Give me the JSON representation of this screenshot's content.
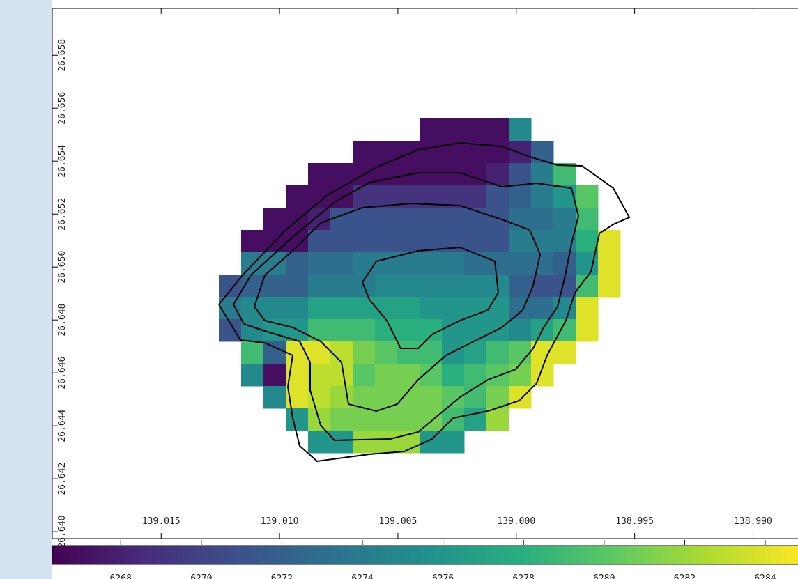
{
  "chart_data": {
    "type": "heatmap",
    "colormap": "viridis",
    "xlim": [
      139.0196,
      138.9881
    ],
    "xticks": [
      139.015,
      {
        "value": 139.01,
        "label": "139.010"
      },
      139.005,
      {
        "value": 139,
        "label": "139.000"
      },
      138.995,
      {
        "value": 138.99,
        "label": "138.990"
      }
    ],
    "ylim": [
      26.63974,
      26.65977
    ],
    "yticks": [
      {
        "value": 26.64,
        "label": "26.640"
      },
      26.642,
      26.644,
      26.646,
      26.648,
      {
        "value": 26.65,
        "label": "26.650"
      },
      26.652,
      26.654,
      26.656,
      26.658
    ],
    "values": [
      [
        null,
        null,
        null,
        null,
        null,
        null,
        null,
        null,
        null,
        6267,
        6267,
        6267,
        6267,
        6275,
        null,
        null,
        null,
        null
      ],
      [
        null,
        null,
        null,
        null,
        null,
        null,
        6267,
        6267,
        6267,
        6267,
        6267,
        6267,
        6267,
        6268,
        6272,
        null,
        null,
        null
      ],
      [
        null,
        null,
        null,
        null,
        6267,
        6267,
        6267,
        6267,
        6267,
        6267,
        6267,
        6267,
        6268,
        6271,
        6274,
        6279,
        null,
        null
      ],
      [
        null,
        null,
        null,
        6267,
        6267,
        6267,
        6269,
        6269,
        6269,
        6269,
        6269,
        6269,
        6271,
        6272,
        6274,
        6276,
        6280,
        null
      ],
      [
        null,
        null,
        6267,
        6267,
        6268,
        6271,
        6271,
        6271,
        6271,
        6271,
        6271,
        6271,
        6271,
        6273,
        6273,
        6274,
        6279,
        null
      ],
      [
        null,
        6267,
        6267,
        6267,
        6271,
        6271,
        6271,
        6271,
        6271,
        6271,
        6271,
        6271,
        6271,
        6274,
        6274,
        6274,
        6278,
        6284
      ],
      [
        null,
        6274,
        6274,
        6272,
        6273,
        6273,
        6274,
        6274,
        6274,
        6274,
        6274,
        6273,
        6273,
        6273,
        6273,
        6272,
        6276,
        6284
      ],
      [
        6271,
        6272,
        6272,
        6272,
        6274,
        6274,
        6274,
        6275,
        6275,
        6275,
        6275,
        6275,
        6275,
        6272,
        6271,
        6271,
        6279,
        6284
      ],
      [
        6274,
        6275,
        6275,
        6275,
        6277,
        6277,
        6277,
        6277,
        6277,
        6276,
        6276,
        6276,
        6276,
        6273,
        6273,
        6275,
        6284,
        null
      ],
      [
        6271,
        6275,
        6276,
        6276,
        6279,
        6279,
        6279,
        6278,
        6278,
        6278,
        6276,
        6276,
        6276,
        6275,
        6277,
        6279,
        6284,
        null
      ],
      [
        null,
        6279,
        6272,
        6284,
        6284,
        6283,
        6281,
        6280,
        6279,
        6279,
        6276,
        6277,
        6279,
        6280,
        6284,
        6284,
        null,
        null
      ],
      [
        null,
        6275,
        6267,
        6284,
        6283,
        6283,
        6280,
        6281,
        6281,
        6280,
        6278,
        6279,
        6280,
        6281,
        6284,
        null,
        null,
        null
      ],
      [
        null,
        null,
        6275,
        6284,
        6283,
        6282,
        6281,
        6281,
        6281,
        6281,
        6280,
        6279,
        6281,
        6284,
        null,
        null,
        null,
        null
      ],
      [
        null,
        null,
        null,
        6276,
        6282,
        6281,
        6281,
        6281,
        6281,
        6281,
        6279,
        6277,
        6282,
        null,
        null,
        null,
        null,
        null
      ],
      [
        null,
        null,
        null,
        null,
        6276,
        6276,
        6282,
        6282,
        6282,
        6276,
        6276,
        null,
        null,
        null,
        null,
        null,
        null,
        null
      ]
    ],
    "colorbar": {
      "lim": [
        6266.3,
        6284.9
      ],
      "ticks": [
        6268,
        6270,
        6272,
        6274,
        6276,
        6278,
        6280,
        6282,
        6284
      ]
    }
  }
}
